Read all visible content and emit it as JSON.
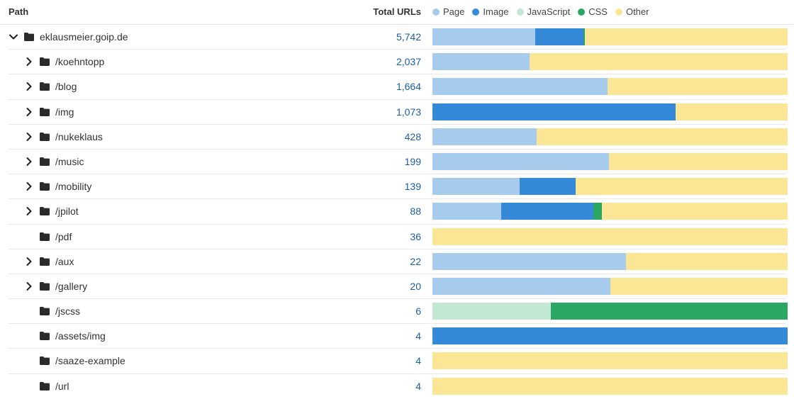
{
  "header": {
    "path_label": "Path",
    "total_label": "Total URLs"
  },
  "legend": [
    {
      "label": "Page",
      "color": "#a7cbec"
    },
    {
      "label": "Image",
      "color": "#3489d9"
    },
    {
      "label": "JavaScript",
      "color": "#c2e8d4"
    },
    {
      "label": "CSS",
      "color": "#2aa763"
    },
    {
      "label": "Other",
      "color": "#fbe696"
    }
  ],
  "rows": [
    {
      "path": "eklausmeier.goip.de",
      "total": "5,742",
      "expanded": true,
      "level": 0,
      "hasChildren": true,
      "mix": {
        "Page": 29,
        "Image": 13.6,
        "JavaScript": 0,
        "CSS": 0.3,
        "Other": 57.1
      }
    },
    {
      "path": "/koehntopp",
      "total": "2,037",
      "level": 1,
      "hasChildren": true,
      "mix": {
        "Page": 27.3,
        "Image": 0,
        "JavaScript": 0,
        "CSS": 0,
        "Other": 72.7
      }
    },
    {
      "path": "/blog",
      "total": "1,664",
      "level": 1,
      "hasChildren": true,
      "mix": {
        "Page": 49.3,
        "Image": 0,
        "JavaScript": 0,
        "CSS": 0,
        "Other": 50.7
      }
    },
    {
      "path": "/img",
      "total": "1,073",
      "level": 1,
      "hasChildren": true,
      "mix": {
        "Page": 0,
        "Image": 68.5,
        "JavaScript": 0,
        "CSS": 0,
        "Other": 31.5
      }
    },
    {
      "path": "/nukeklaus",
      "total": "428",
      "level": 1,
      "hasChildren": true,
      "mix": {
        "Page": 29.3,
        "Image": 0,
        "JavaScript": 0,
        "CSS": 0,
        "Other": 70.7
      }
    },
    {
      "path": "/music",
      "total": "199",
      "level": 1,
      "hasChildren": true,
      "mix": {
        "Page": 49.7,
        "Image": 0,
        "JavaScript": 0,
        "CSS": 0,
        "Other": 50.3
      }
    },
    {
      "path": "/mobility",
      "total": "139",
      "level": 1,
      "hasChildren": true,
      "mix": {
        "Page": 24.5,
        "Image": 15.8,
        "JavaScript": 0,
        "CSS": 0,
        "Other": 59.7
      }
    },
    {
      "path": "/jpilot",
      "total": "88",
      "level": 1,
      "hasChildren": true,
      "mix": {
        "Page": 19.3,
        "Image": 26.1,
        "JavaScript": 0,
        "CSS": 2.3,
        "Other": 52.3
      }
    },
    {
      "path": "/pdf",
      "total": "36",
      "level": 1,
      "hasChildren": false,
      "mix": {
        "Page": 0,
        "Image": 0,
        "JavaScript": 0,
        "CSS": 0,
        "Other": 100
      }
    },
    {
      "path": "/aux",
      "total": "22",
      "level": 1,
      "hasChildren": true,
      "mix": {
        "Page": 54.5,
        "Image": 0,
        "JavaScript": 0,
        "CSS": 0,
        "Other": 45.5
      }
    },
    {
      "path": "/gallery",
      "total": "20",
      "level": 1,
      "hasChildren": true,
      "mix": {
        "Page": 50,
        "Image": 0,
        "JavaScript": 0,
        "CSS": 0,
        "Other": 50
      }
    },
    {
      "path": "/jscss",
      "total": "6",
      "level": 1,
      "hasChildren": false,
      "mix": {
        "Page": 0,
        "Image": 0,
        "JavaScript": 33.3,
        "CSS": 66.7,
        "Other": 0
      }
    },
    {
      "path": "/assets/img",
      "total": "4",
      "level": 1,
      "hasChildren": false,
      "mix": {
        "Page": 0,
        "Image": 100,
        "JavaScript": 0,
        "CSS": 0,
        "Other": 0
      }
    },
    {
      "path": "/saaze-example",
      "total": "4",
      "level": 1,
      "hasChildren": false,
      "mix": {
        "Page": 0,
        "Image": 0,
        "JavaScript": 0,
        "CSS": 0,
        "Other": 100
      }
    },
    {
      "path": "/url",
      "total": "4",
      "level": 1,
      "hasChildren": false,
      "mix": {
        "Page": 0,
        "Image": 0,
        "JavaScript": 0,
        "CSS": 0,
        "Other": 100
      }
    }
  ]
}
